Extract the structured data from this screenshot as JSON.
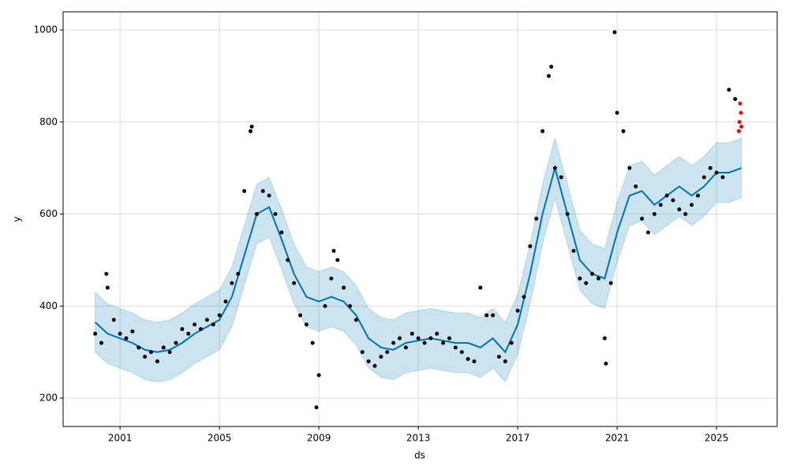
{
  "chart_data": {
    "type": "scatter",
    "xlabel": "ds",
    "ylabel": "y",
    "xlim": [
      1998.71,
      2027.44
    ],
    "ylim": [
      138.4,
      1039.4
    ],
    "xticks": [
      2001,
      2005,
      2009,
      2013,
      2017,
      2021,
      2025
    ],
    "yticks": [
      200,
      400,
      600,
      800,
      1000
    ],
    "grid": true,
    "series": [
      {
        "style": "band",
        "color": "#0072B2",
        "x": [
          2000,
          2000.5,
          2001,
          2001.5,
          2002,
          2002.5,
          2003,
          2003.5,
          2004,
          2004.5,
          2005,
          2005.5,
          2006,
          2006.5,
          2007,
          2007.5,
          2008,
          2008.5,
          2009,
          2009.5,
          2010,
          2010.5,
          2011,
          2011.5,
          2012,
          2012.5,
          2013,
          2013.5,
          2014,
          2014.5,
          2015,
          2015.5,
          2016,
          2016.5,
          2017,
          2017.5,
          2018,
          2018.5,
          2019,
          2019.5,
          2020,
          2020.5,
          2021,
          2021.5,
          2022,
          2022.5,
          2023,
          2023.5,
          2024,
          2024.5,
          2025,
          2025.5,
          2026
        ],
        "lower": [
          300,
          275,
          265,
          255,
          240,
          235,
          240,
          255,
          275,
          290,
          305,
          355,
          445,
          535,
          550,
          480,
          405,
          355,
          345,
          355,
          345,
          315,
          265,
          245,
          240,
          255,
          260,
          265,
          260,
          255,
          255,
          245,
          265,
          235,
          295,
          405,
          535,
          635,
          535,
          435,
          405,
          395,
          495,
          575,
          585,
          555,
          575,
          595,
          575,
          595,
          625,
          625,
          635
        ],
        "upper": [
          430,
          405,
          395,
          385,
          370,
          365,
          370,
          385,
          405,
          420,
          435,
          485,
          575,
          665,
          680,
          610,
          535,
          485,
          475,
          485,
          475,
          445,
          395,
          375,
          370,
          385,
          390,
          395,
          390,
          385,
          385,
          375,
          395,
          365,
          425,
          535,
          665,
          765,
          665,
          565,
          535,
          525,
          625,
          705,
          715,
          685,
          705,
          725,
          705,
          725,
          755,
          755,
          765
        ]
      },
      {
        "style": "line",
        "color": "#0072B2",
        "x": [
          2000,
          2000.5,
          2001,
          2001.5,
          2002,
          2002.5,
          2003,
          2003.5,
          2004,
          2004.5,
          2005,
          2005.5,
          2006,
          2006.5,
          2007,
          2007.5,
          2008,
          2008.5,
          2009,
          2009.5,
          2010,
          2010.5,
          2011,
          2011.5,
          2012,
          2012.5,
          2013,
          2013.5,
          2014,
          2014.5,
          2015,
          2015.5,
          2016,
          2016.5,
          2017,
          2017.5,
          2018,
          2018.5,
          2019,
          2019.5,
          2020,
          2020.5,
          2021,
          2021.5,
          2022,
          2022.5,
          2023,
          2023.5,
          2024,
          2024.5,
          2025,
          2025.5,
          2026
        ],
        "values": [
          365,
          340,
          330,
          320,
          305,
          300,
          305,
          320,
          340,
          355,
          370,
          420,
          510,
          600,
          615,
          545,
          470,
          420,
          410,
          420,
          410,
          380,
          330,
          310,
          305,
          320,
          325,
          330,
          325,
          320,
          320,
          310,
          330,
          300,
          360,
          470,
          600,
          700,
          600,
          500,
          470,
          460,
          560,
          640,
          650,
          620,
          640,
          660,
          640,
          660,
          690,
          690,
          700
        ]
      },
      {
        "style": "dots",
        "color": "#000000",
        "x": [
          2000,
          2000.25,
          2000.5,
          2000.75,
          2001,
          2001.25,
          2001.5,
          2001.75,
          2002,
          2002.25,
          2002.5,
          2002.75,
          2003,
          2003.25,
          2003.5,
          2003.75,
          2004,
          2004.25,
          2004.5,
          2004.75,
          2005,
          2005.25,
          2005.5,
          2005.75,
          2006,
          2006.25,
          2006.5,
          2006.75,
          2007,
          2007.25,
          2007.5,
          2007.75,
          2008,
          2008.25,
          2008.5,
          2008.75,
          2009,
          2009.25,
          2009.5,
          2009.75,
          2010,
          2010.25,
          2010.5,
          2010.75,
          2011,
          2011.25,
          2011.5,
          2011.75,
          2012,
          2012.25,
          2012.5,
          2012.75,
          2013,
          2013.25,
          2013.5,
          2013.75,
          2014,
          2014.25,
          2014.5,
          2014.75,
          2015,
          2015.25,
          2015.5,
          2015.75,
          2016,
          2016.25,
          2016.5,
          2016.75,
          2017,
          2017.25,
          2017.5,
          2017.75,
          2018,
          2018.25,
          2018.5,
          2018.75,
          2019,
          2019.25,
          2019.5,
          2019.75,
          2020,
          2020.25,
          2020.5,
          2020.75,
          2021,
          2021.25,
          2021.5,
          2021.75,
          2022,
          2022.25,
          2022.5,
          2022.75,
          2023,
          2023.25,
          2023.5,
          2023.75,
          2024,
          2024.25,
          2024.5,
          2024.75,
          2025,
          2025.25,
          2025.5,
          2025.75,
          2008.9,
          2020.9,
          2020.55,
          2006.3,
          2018.35,
          2000.45,
          2009.6
        ],
        "values": [
          340,
          320,
          440,
          370,
          340,
          330,
          345,
          310,
          290,
          300,
          280,
          310,
          300,
          320,
          350,
          340,
          360,
          350,
          370,
          360,
          380,
          410,
          450,
          470,
          650,
          780,
          600,
          650,
          640,
          600,
          560,
          500,
          450,
          380,
          360,
          320,
          250,
          400,
          460,
          500,
          440,
          400,
          370,
          300,
          280,
          270,
          290,
          300,
          320,
          330,
          310,
          340,
          330,
          320,
          330,
          340,
          320,
          330,
          310,
          300,
          285,
          280,
          440,
          380,
          380,
          290,
          280,
          320,
          390,
          420,
          530,
          590,
          780,
          900,
          700,
          680,
          600,
          520,
          460,
          450,
          470,
          460,
          330,
          450,
          820,
          780,
          700,
          660,
          590,
          560,
          600,
          620,
          640,
          630,
          610,
          600,
          620,
          640,
          680,
          700,
          690,
          680,
          870,
          850,
          180,
          995,
          275,
          790,
          920,
          470,
          520
        ]
      },
      {
        "style": "dots",
        "color": "#ff0000",
        "x": [
          2025.9,
          2025.92,
          2025.95,
          2025.98,
          2026.0
        ],
        "values": [
          780,
          800,
          840,
          820,
          790
        ]
      }
    ]
  }
}
